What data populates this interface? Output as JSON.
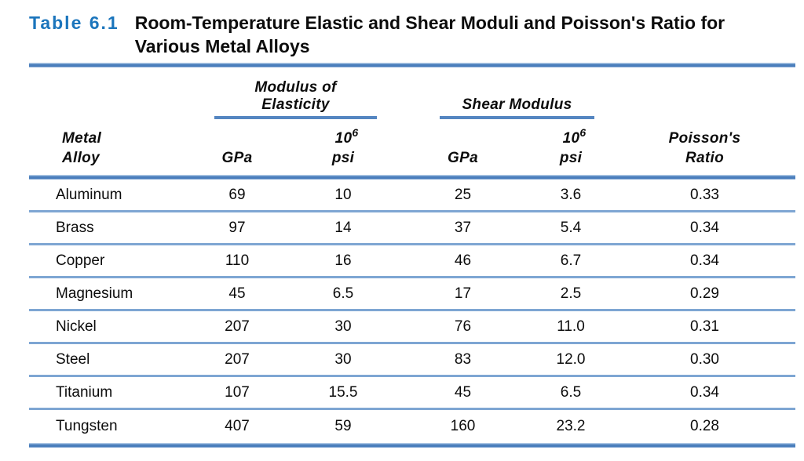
{
  "colors": {
    "accent_blue": "#1b75bc",
    "rule_heavy": "#4a7ebc",
    "rule_light": "#7ea6d3"
  },
  "title": {
    "label": "Table 6.1",
    "line1": "Room-Temperature Elastic and Shear Moduli and Poisson's Ratio for",
    "line2": "Various Metal Alloys"
  },
  "table": {
    "group_headers": {
      "elastic_line1": "Modulus of",
      "elastic_line2": "Elasticity",
      "shear": "Shear Modulus"
    },
    "columns": {
      "alloy_line1": "Metal",
      "alloy_line2": "Alloy",
      "gpa": "GPa",
      "unit_base": "10",
      "unit_exp": "6",
      "unit_psi": "psi",
      "poisson_line1": "Poisson's",
      "poisson_line2": "Ratio"
    },
    "rows": [
      {
        "alloy": "Aluminum",
        "e_gpa": "69",
        "e_psi": "10",
        "g_gpa": "25",
        "g_psi": "3.6",
        "poisson": "0.33"
      },
      {
        "alloy": "Brass",
        "e_gpa": "97",
        "e_psi": "14",
        "g_gpa": "37",
        "g_psi": "5.4",
        "poisson": "0.34"
      },
      {
        "alloy": "Copper",
        "e_gpa": "110",
        "e_psi": "16",
        "g_gpa": "46",
        "g_psi": "6.7",
        "poisson": "0.34"
      },
      {
        "alloy": "Magnesium",
        "e_gpa": "45",
        "e_psi": "6.5",
        "g_gpa": "17",
        "g_psi": "2.5",
        "poisson": "0.29"
      },
      {
        "alloy": "Nickel",
        "e_gpa": "207",
        "e_psi": "30",
        "g_gpa": "76",
        "g_psi": "11.0",
        "poisson": "0.31"
      },
      {
        "alloy": "Steel",
        "e_gpa": "207",
        "e_psi": "30",
        "g_gpa": "83",
        "g_psi": "12.0",
        "poisson": "0.30"
      },
      {
        "alloy": "Titanium",
        "e_gpa": "107",
        "e_psi": "15.5",
        "g_gpa": "45",
        "g_psi": "6.5",
        "poisson": "0.34"
      },
      {
        "alloy": "Tungsten",
        "e_gpa": "407",
        "e_psi": "59",
        "g_gpa": "160",
        "g_psi": "23.2",
        "poisson": "0.28"
      }
    ]
  },
  "chart_data": {
    "type": "table",
    "title": "Table 6.1 Room-Temperature Elastic and Shear Moduli and Poisson's Ratio for Various Metal Alloys",
    "columns": [
      "Metal Alloy",
      "Modulus of Elasticity GPa",
      "Modulus of Elasticity 10^6 psi",
      "Shear Modulus GPa",
      "Shear Modulus 10^6 psi",
      "Poisson's Ratio"
    ],
    "rows": [
      [
        "Aluminum",
        69,
        10,
        25,
        3.6,
        0.33
      ],
      [
        "Brass",
        97,
        14,
        37,
        5.4,
        0.34
      ],
      [
        "Copper",
        110,
        16,
        46,
        6.7,
        0.34
      ],
      [
        "Magnesium",
        45,
        6.5,
        17,
        2.5,
        0.29
      ],
      [
        "Nickel",
        207,
        30,
        76,
        11.0,
        0.31
      ],
      [
        "Steel",
        207,
        30,
        83,
        12.0,
        0.3
      ],
      [
        "Titanium",
        107,
        15.5,
        45,
        6.5,
        0.34
      ],
      [
        "Tungsten",
        407,
        59,
        160,
        23.2,
        0.28
      ]
    ]
  }
}
